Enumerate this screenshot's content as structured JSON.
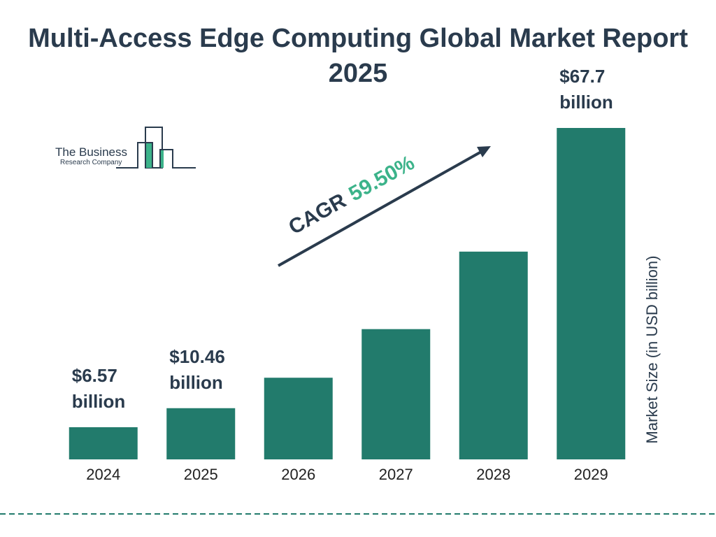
{
  "chart_data": {
    "type": "bar",
    "title": "Multi-Access Edge Computing Global Market Report 2025",
    "categories": [
      "2024",
      "2025",
      "2026",
      "2027",
      "2028",
      "2029"
    ],
    "values": [
      6.57,
      10.46,
      16.68,
      26.61,
      42.44,
      67.7
    ],
    "value_labels": [
      "$6.57 billion",
      "$10.46 billion",
      null,
      null,
      null,
      "$67.7 billion"
    ],
    "color": "#227b6c",
    "y_axis_label": "Market Size (in USD billion)",
    "annotation": {
      "label": "CAGR",
      "value": "59.50%"
    }
  },
  "logo": {
    "line1": "The Business",
    "line2": "Research Company"
  }
}
